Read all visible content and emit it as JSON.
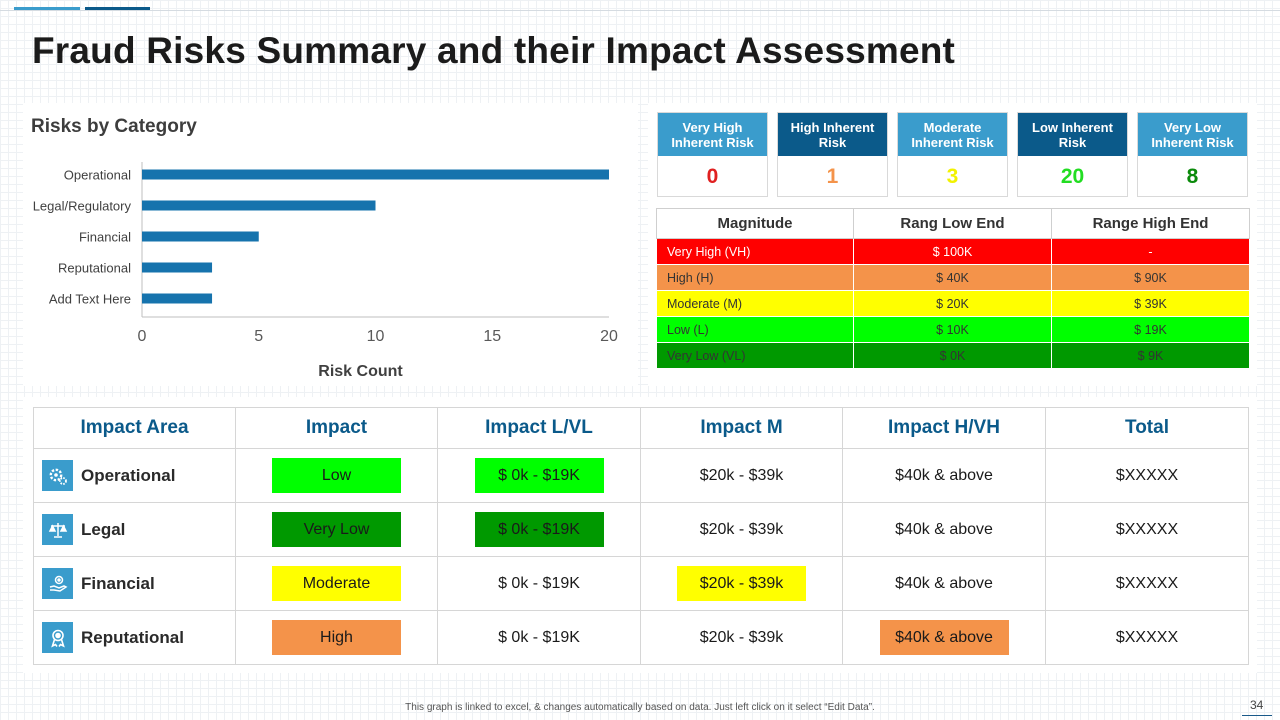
{
  "slide": {
    "title": "Fraud Risks Summary and their Impact Assessment",
    "page_number": "34",
    "footnote": "This graph is linked to excel, & changes automatically  based on data. Just left click on it select “Edit Data”."
  },
  "colors": {
    "accent_light": "#3a9ccc",
    "accent_dark": "#0b5a8a",
    "bar": "#1673ad",
    "very_high": "#ff0000",
    "high": "#f4934a",
    "moderate": "#ffff00",
    "low": "#00ff00",
    "very_low": "#009900"
  },
  "chart_data": {
    "type": "bar",
    "orientation": "horizontal",
    "title": "Risks by Category",
    "categories": [
      "Operational",
      "Legal/Regulatory",
      "Financial",
      "Reputational",
      "Add Text Here"
    ],
    "values": [
      20,
      10,
      5,
      3,
      3
    ],
    "xlabel": "Risk Count",
    "ylabel": "",
    "xlim": [
      0,
      20
    ],
    "xticks": [
      0,
      5,
      10,
      15,
      20
    ],
    "grid": false,
    "legend": "none"
  },
  "risk_cards": [
    {
      "label": "Very High Inherent Risk",
      "count": "0",
      "head_color": "#3a9ccc",
      "count_color": "#e02020"
    },
    {
      "label": "High Inherent Risk",
      "count": "1",
      "head_color": "#0b5a8a",
      "count_color": "#f4934a"
    },
    {
      "label": "Moderate Inherent Risk",
      "count": "3",
      "head_color": "#3a9ccc",
      "count_color": "#f2f200"
    },
    {
      "label": "Low Inherent Risk",
      "count": "20",
      "head_color": "#0b5a8a",
      "count_color": "#22dd22"
    },
    {
      "label": "Very Low Inherent Risk",
      "count": "8",
      "head_color": "#3a9ccc",
      "count_color": "#0a8a0a"
    }
  ],
  "magnitude_table": {
    "headers": [
      "Magnitude",
      "Rang Low End",
      "Range High End"
    ],
    "rows": [
      {
        "magnitude": "Very High (VH)",
        "low": "$ 100K",
        "high": "-",
        "bg": "#ff0000",
        "fg": "#ffffff"
      },
      {
        "magnitude": "High (H)",
        "low": "$ 40K",
        "high": "$ 90K",
        "bg": "#f4934a",
        "fg": "#333333"
      },
      {
        "magnitude": "Moderate  (M)",
        "low": "$ 20K",
        "high": "$ 39K",
        "bg": "#ffff00",
        "fg": "#333333"
      },
      {
        "magnitude": "Low (L)",
        "low": "$ 10K",
        "high": "$ 19K",
        "bg": "#00ff00",
        "fg": "#333333"
      },
      {
        "magnitude": "Very Low (VL)",
        "low": "$ 0K",
        "high": "$ 9K",
        "bg": "#009900",
        "fg": "#333333"
      }
    ]
  },
  "impact_table": {
    "headers": [
      "Impact Area",
      "Impact",
      "Impact L/VL",
      "Impact M",
      "Impact H/VH",
      "Total"
    ],
    "rows": [
      {
        "area": "Operational",
        "icon": "gears-icon",
        "impact": "Low",
        "impact_color": "#00ff00",
        "lvl": "$ 0k - $19K",
        "m": "$20k - $39k",
        "hvh": "$40k & above",
        "total": "$XXXXX",
        "highlight": "lvl",
        "highlight_color": "#00ff00"
      },
      {
        "area": "Legal",
        "icon": "scales-icon",
        "impact": "Very Low",
        "impact_color": "#009900",
        "lvl": "$ 0k - $19K",
        "m": "$20k - $39k",
        "hvh": "$40k & above",
        "total": "$XXXXX",
        "highlight": "lvl",
        "highlight_color": "#009900"
      },
      {
        "area": "Financial",
        "icon": "money-hand-icon",
        "impact": "Moderate",
        "impact_color": "#ffff00",
        "lvl": "$ 0k - $19K",
        "m": "$20k - $39k",
        "hvh": "$40k & above",
        "total": "$XXXXX",
        "highlight": "m",
        "highlight_color": "#ffff00"
      },
      {
        "area": "Reputational",
        "icon": "award-ribbon-icon",
        "impact": "High",
        "impact_color": "#f4934a",
        "lvl": "$ 0k - $19K",
        "m": "$20k - $39k",
        "hvh": "$40k & above",
        "total": "$XXXXX",
        "highlight": "hvh",
        "highlight_color": "#f4934a"
      }
    ]
  }
}
